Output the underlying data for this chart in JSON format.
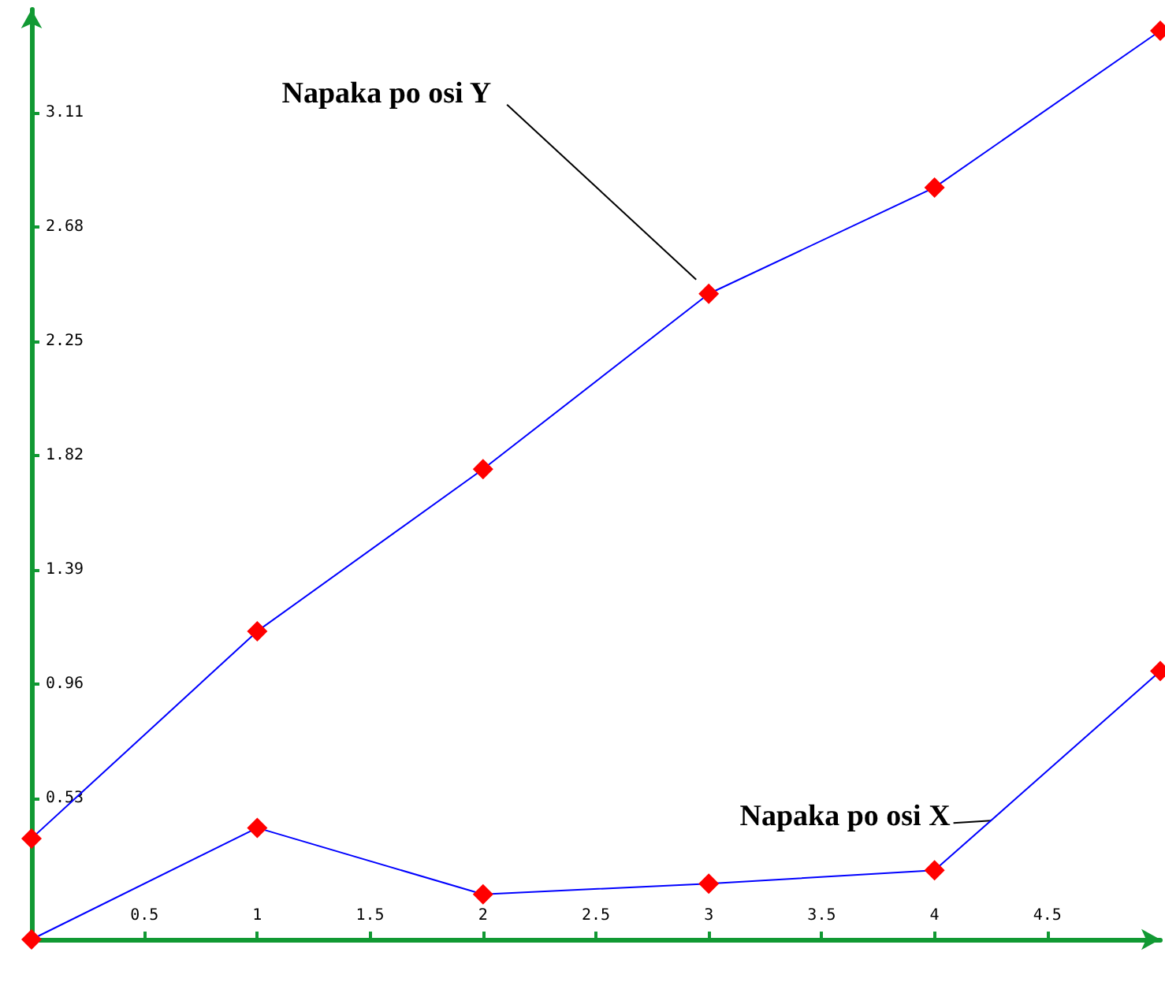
{
  "chart_data": {
    "type": "line",
    "x": [
      0,
      1,
      2,
      3,
      4,
      5
    ],
    "xlim": [
      0,
      5
    ],
    "ylim": [
      0,
      3.5
    ],
    "xticks": [
      0.5,
      1,
      1.5,
      2,
      2.5,
      3,
      3.5,
      4,
      4.5
    ],
    "yticks": [
      0.53,
      0.96,
      1.39,
      1.82,
      2.25,
      2.68,
      3.11
    ],
    "grid": false,
    "legend": false,
    "marker": "diamond",
    "line_style": "solid",
    "series": [
      {
        "name": "Napaka po osi Y",
        "color": "#0000ff",
        "colors": [
          "#ff0000",
          "#ff0000",
          "#ff0000",
          "#ff0000",
          "#ff0000",
          "#ff0000"
        ],
        "values": [
          0.38,
          1.16,
          1.77,
          2.43,
          2.83,
          3.42
        ]
      },
      {
        "name": "Napaka po osi X",
        "color": "#0000ff",
        "colors": [
          "#ff0000",
          "#ff0000",
          "#ff0000",
          "#ff0000",
          "#ff0000",
          "#ff0000"
        ],
        "values": [
          0,
          0.42,
          0.17,
          0.21,
          0.26,
          1.01
        ]
      }
    ]
  }
}
